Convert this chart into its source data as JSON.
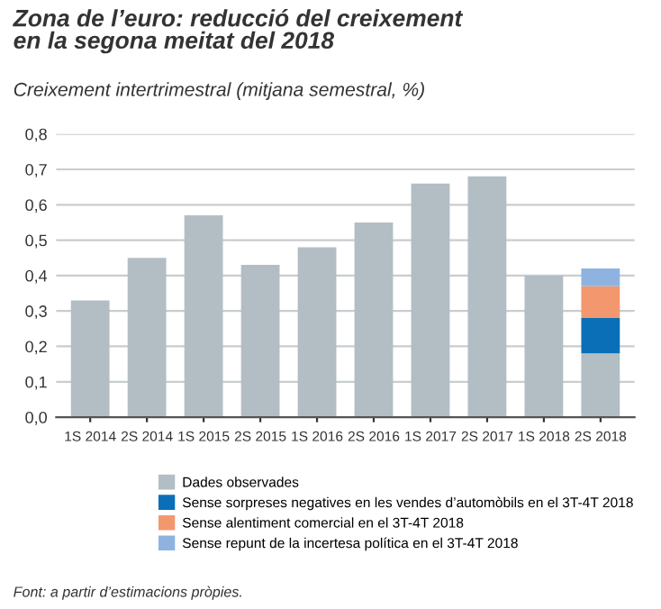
{
  "chart_data": {
    "type": "bar",
    "stacked": true,
    "title": "Zona de l’euro: reducció del creixement\nen la segona meitat del 2018",
    "subtitle": "Creixement intertrimestral (mitjana semestral, %)",
    "categories": [
      "1S 2014",
      "2S 2014",
      "1S 2015",
      "2S 2015",
      "1S 2016",
      "2S 2016",
      "1S 2017",
      "2S 2017",
      "1S 2018",
      "2S 2018"
    ],
    "series": [
      {
        "name": "Dades observades",
        "color": "#b2bec3",
        "values": [
          0.33,
          0.45,
          0.57,
          0.43,
          0.48,
          0.55,
          0.66,
          0.68,
          0.4,
          0.18
        ]
      },
      {
        "name": "Sense sorpreses negatives en les vendes d’automòbils en el 3T-4T 2018",
        "color": "#0a6fb7",
        "values": [
          null,
          null,
          null,
          null,
          null,
          null,
          null,
          null,
          null,
          0.1
        ]
      },
      {
        "name": "Sense alentiment comercial en el 3T-4T 2018",
        "color": "#f3986e",
        "values": [
          null,
          null,
          null,
          null,
          null,
          null,
          null,
          null,
          null,
          0.09
        ]
      },
      {
        "name": "Sense repunt de la incertesa política en el 3T-4T 2018",
        "color": "#8fb3e0",
        "values": [
          null,
          null,
          null,
          null,
          null,
          null,
          null,
          null,
          null,
          0.05
        ]
      }
    ],
    "ylim": [
      0,
      0.8
    ],
    "yticks": [
      {
        "value": 0,
        "label": "0,0"
      },
      {
        "value": 0.1,
        "label": "0,1"
      },
      {
        "value": 0.2,
        "label": "0,2"
      },
      {
        "value": 0.3,
        "label": "0,3"
      },
      {
        "value": 0.4,
        "label": "0,4"
      },
      {
        "value": 0.5,
        "label": "0,5"
      },
      {
        "value": 0.6,
        "label": "0,6"
      },
      {
        "value": 0.7,
        "label": "0,7"
      },
      {
        "value": 0.8,
        "label": "0,8"
      }
    ],
    "grid": "y",
    "legend": "bottom",
    "annotations": [
      "Font: a partir d’estimacions pròpies."
    ]
  }
}
